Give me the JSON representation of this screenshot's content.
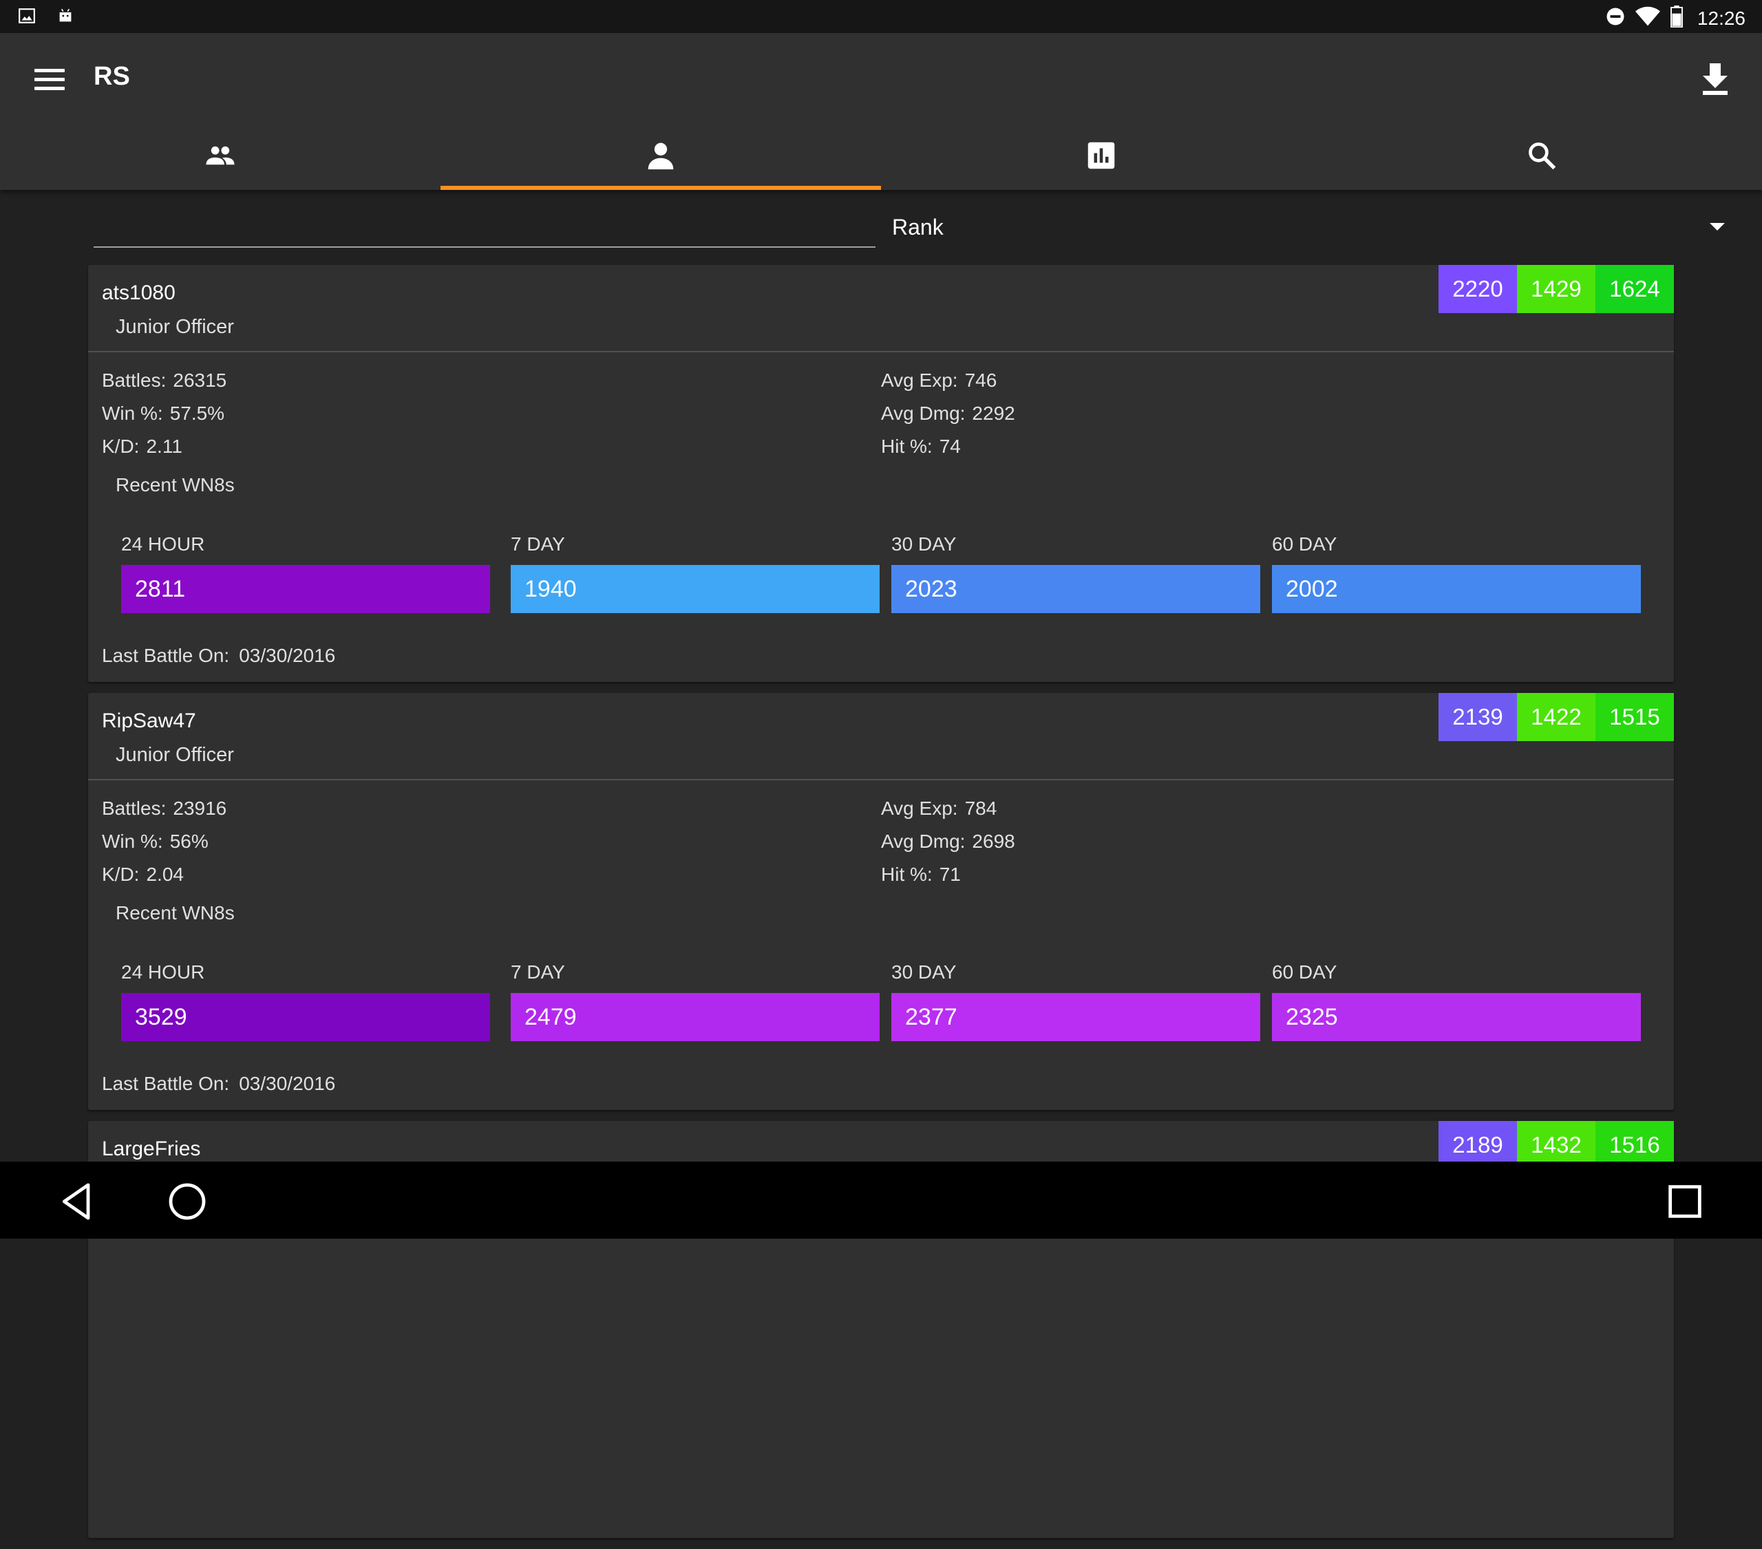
{
  "status_bar": {
    "clock": "12:26",
    "left_icons": [
      "image-icon",
      "android-icon"
    ],
    "right_icons": [
      "dnd-icon",
      "wifi-icon",
      "battery-icon"
    ]
  },
  "app_bar": {
    "title": "RS",
    "actions": [
      "menu-icon",
      "download-icon"
    ]
  },
  "tabs": [
    {
      "icon": "group-icon",
      "active": false
    },
    {
      "icon": "person-icon",
      "active": true
    },
    {
      "icon": "bar-chart-icon",
      "active": false
    },
    {
      "icon": "search-icon",
      "active": false
    }
  ],
  "filter": {
    "input_value": "",
    "sort_selected": "Rank"
  },
  "colors": {
    "accent": "#ff8f1f",
    "appbar": "#303030",
    "background": "#212121",
    "card": "#303030"
  },
  "labels": {
    "battles": "Battles:",
    "win": "Win %:",
    "kd": "K/D:",
    "avg_exp": "Avg Exp:",
    "avg_dmg": "Avg Dmg:",
    "hit": "Hit %:",
    "recent_wn8s": "Recent WN8s",
    "day24": "24 HOUR",
    "day7": "7 DAY",
    "day30": "30 DAY",
    "day60": "60 DAY",
    "last_battle": "Last Battle On:"
  },
  "players": [
    {
      "name": "ats1080",
      "rank": "Junior Officer",
      "badges": [
        {
          "value": "2220",
          "color": "#7c4dff"
        },
        {
          "value": "1429",
          "color": "#4ce30a"
        },
        {
          "value": "1624",
          "color": "#16d41c"
        }
      ],
      "battles": "26315",
      "win": "57.5%",
      "kd": "2.11",
      "avg_exp": "746",
      "avg_dmg": "2292",
      "hit": "74",
      "wn8": [
        {
          "value": "2811",
          "color": "#8a0ac9"
        },
        {
          "value": "1940",
          "color": "#3fa7f5"
        },
        {
          "value": "2023",
          "color": "#4a86f2"
        },
        {
          "value": "2002",
          "color": "#4588ef"
        }
      ],
      "last_battle": "03/30/2016"
    },
    {
      "name": "RipSaw47",
      "rank": "Junior Officer",
      "badges": [
        {
          "value": "2139",
          "color": "#6f5bf2"
        },
        {
          "value": "1422",
          "color": "#4ce30a"
        },
        {
          "value": "1515",
          "color": "#27d90e"
        }
      ],
      "battles": "23916",
      "win": "56%",
      "kd": "2.04",
      "avg_exp": "784",
      "avg_dmg": "2698",
      "hit": "71",
      "wn8": [
        {
          "value": "3529",
          "color": "#7d06c2"
        },
        {
          "value": "2479",
          "color": "#b129ee"
        },
        {
          "value": "2377",
          "color": "#b92ef2"
        },
        {
          "value": "2325",
          "color": "#b52ff0"
        }
      ],
      "last_battle": "03/30/2016"
    },
    {
      "name": "LargeFries",
      "badges": [
        {
          "value": "2189",
          "color": "#7253f5"
        },
        {
          "value": "1432",
          "color": "#4ce30a"
        },
        {
          "value": "1516",
          "color": "#27d90e"
        }
      ]
    }
  ],
  "nav_bar": [
    "back-icon",
    "home-icon",
    "recents-icon"
  ]
}
